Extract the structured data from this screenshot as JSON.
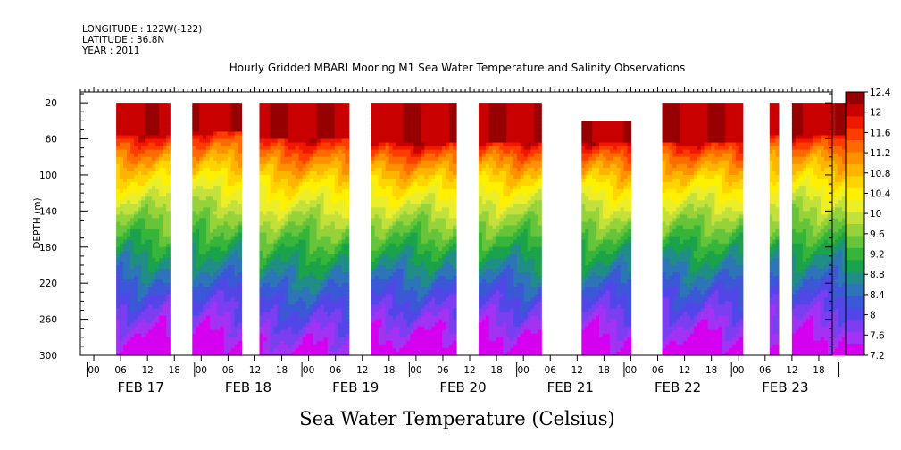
{
  "header": {
    "longitude": "LONGITUDE : 122W(-122)",
    "latitude": "LATITUDE : 36.8N",
    "year": "YEAR : 2011"
  },
  "chart_data": {
    "type": "heatmap",
    "title": "Hourly Gridded MBARI Mooring M1 Sea Water Temperature and Salinity Observations",
    "xlabel": "Sea Water Temperature (Celsius)",
    "ylabel": "DEPTH (m)",
    "y_reversed": true,
    "ylim": [
      300,
      8
    ],
    "y_ticks": [
      20,
      60,
      100,
      140,
      180,
      220,
      260,
      300
    ],
    "x_hour_ticks": [
      "00",
      "06",
      "12",
      "18",
      "00",
      "06",
      "12",
      "18",
      "00",
      "06",
      "12",
      "18",
      "00",
      "06",
      "12",
      "18",
      "00",
      "06",
      "12",
      "18",
      "00",
      "06",
      "12",
      "18",
      "00",
      "06",
      "12",
      "18"
    ],
    "x_days": [
      "FEB 17",
      "FEB 18",
      "FEB 19",
      "FEB 20",
      "FEB 21",
      "FEB 22",
      "FEB 23"
    ],
    "x_range_hours": [
      -3,
      165
    ],
    "colorbar_levels": [
      7.2,
      7.6,
      8,
      8.4,
      8.8,
      9.2,
      9.6,
      10,
      10.4,
      10.8,
      11.2,
      11.6,
      12,
      12.4
    ],
    "colorbar_colors": [
      "#d600f0",
      "#a233f2",
      "#7b3ef0",
      "#5246e8",
      "#3b58d6",
      "#2e74b8",
      "#208d86",
      "#1aa34a",
      "#36b53a",
      "#66c43a",
      "#96d23a",
      "#c4e03a",
      "#ecee2a",
      "#fff000",
      "#ffd400",
      "#ffb400",
      "#ff9000",
      "#ff6a00",
      "#ff3c00",
      "#f01800",
      "#c80000",
      "#960000"
    ],
    "data_blocks": [
      {
        "start_hour": 5,
        "end_hour": 17,
        "top_depth": 20,
        "warm_depth": 55,
        "cool_rate": 1.0
      },
      {
        "start_hour": 22,
        "end_hour": 33,
        "top_depth": 20,
        "warm_depth": 50,
        "cool_rate": 1.0
      },
      {
        "start_hour": 37,
        "end_hour": 57,
        "top_depth": 20,
        "warm_depth": 60,
        "cool_rate": 0.95
      },
      {
        "start_hour": 62,
        "end_hour": 81,
        "top_depth": 20,
        "warm_depth": 65,
        "cool_rate": 1.0
      },
      {
        "start_hour": 86,
        "end_hour": 100,
        "top_depth": 20,
        "warm_depth": 62,
        "cool_rate": 1.0
      },
      {
        "start_hour": 109,
        "end_hour": 120,
        "top_depth": 40,
        "warm_depth": 65,
        "cool_rate": 1.0
      },
      {
        "start_hour": 127,
        "end_hour": 145,
        "top_depth": 20,
        "warm_depth": 62,
        "cool_rate": 1.0
      },
      {
        "start_hour": 151,
        "end_hour": 153,
        "top_depth": 20,
        "warm_depth": 55,
        "cool_rate": 1.0
      },
      {
        "start_hour": 156,
        "end_hour": 168,
        "top_depth": 20,
        "warm_depth": 55,
        "cool_rate": 1.0
      }
    ]
  }
}
